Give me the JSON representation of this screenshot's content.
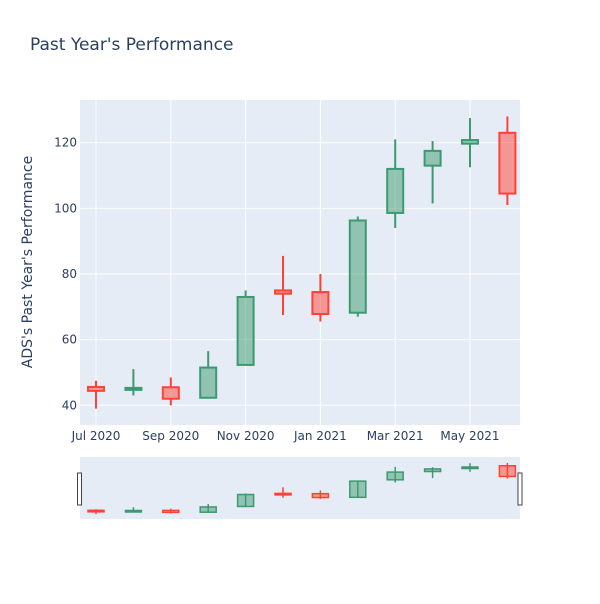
{
  "chart_data": {
    "type": "candlestick",
    "title": "Past Year's Performance",
    "xlabel": "",
    "ylabel": "ADS's Past Year's Performance",
    "x_ticks": [
      "Jul 2020",
      "Sep 2020",
      "Nov 2020",
      "Jan 2021",
      "Mar 2021",
      "May 2021"
    ],
    "y_ticks": [
      40,
      60,
      80,
      100,
      120
    ],
    "ylim": [
      34,
      133
    ],
    "grid": true,
    "range_slider": true,
    "colors": {
      "increasing": "#3d9970",
      "decreasing": "#ff4136",
      "plot_bg": "#e5ecf6",
      "text": "#2a3f5f"
    },
    "series": [
      {
        "x": "2020-07",
        "open": 45.6,
        "high": 47.5,
        "low": 39.0,
        "close": 44.4
      },
      {
        "x": "2020-08",
        "open": 44.7,
        "high": 51.0,
        "low": 43.0,
        "close": 45.3
      },
      {
        "x": "2020-09",
        "open": 45.5,
        "high": 48.5,
        "low": 40.0,
        "close": 42.0
      },
      {
        "x": "2020-10",
        "open": 42.3,
        "high": 56.5,
        "low": 42.3,
        "close": 51.5
      },
      {
        "x": "2020-11",
        "open": 52.3,
        "high": 75.0,
        "low": 52.0,
        "close": 73.0
      },
      {
        "x": "2020-12",
        "open": 75.0,
        "high": 85.5,
        "low": 67.5,
        "close": 74.0
      },
      {
        "x": "2021-01",
        "open": 74.5,
        "high": 80.0,
        "low": 65.5,
        "close": 67.8
      },
      {
        "x": "2021-02",
        "open": 68.2,
        "high": 97.5,
        "low": 67.0,
        "close": 96.3
      },
      {
        "x": "2021-03",
        "open": 98.6,
        "high": 121.0,
        "low": 94.0,
        "close": 112.0
      },
      {
        "x": "2021-04",
        "open": 113.0,
        "high": 120.5,
        "low": 101.5,
        "close": 117.5
      },
      {
        "x": "2021-05",
        "open": 119.7,
        "high": 127.5,
        "low": 112.5,
        "close": 120.8
      },
      {
        "x": "2021-06",
        "open": 123.0,
        "high": 128.0,
        "low": 101.0,
        "close": 104.5
      }
    ]
  }
}
